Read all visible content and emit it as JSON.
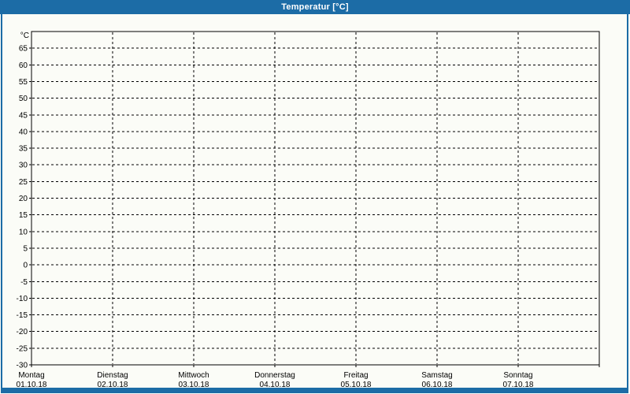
{
  "window": {
    "title": "Temperatur [°C]"
  },
  "colors": {
    "frame_blue": "#1c6ca6",
    "background": "#fbfcf7",
    "grid_line": "#000000",
    "label_text": "#000000",
    "title_text": "#ffffff"
  },
  "chart_data": {
    "type": "line",
    "title": "Temperatur [°C]",
    "ylabel": "°C",
    "xlabel": "",
    "ylim": [
      -30,
      70
    ],
    "y_tick_step": 5,
    "y_ticks": [
      65,
      60,
      55,
      50,
      45,
      40,
      35,
      30,
      25,
      20,
      15,
      10,
      5,
      0,
      -5,
      -10,
      -15,
      -20,
      -25,
      -30
    ],
    "x_days": [
      "Montag",
      "Dienstag",
      "Mittwoch",
      "Donnerstag",
      "Freitag",
      "Samstag",
      "Sonntag"
    ],
    "x_dates": [
      "01.10.18",
      "02.10.18",
      "03.10.18",
      "04.10.18",
      "05.10.18",
      "06.10.18",
      "07.10.18"
    ],
    "grid": "dashed",
    "legend": "none",
    "series": []
  }
}
